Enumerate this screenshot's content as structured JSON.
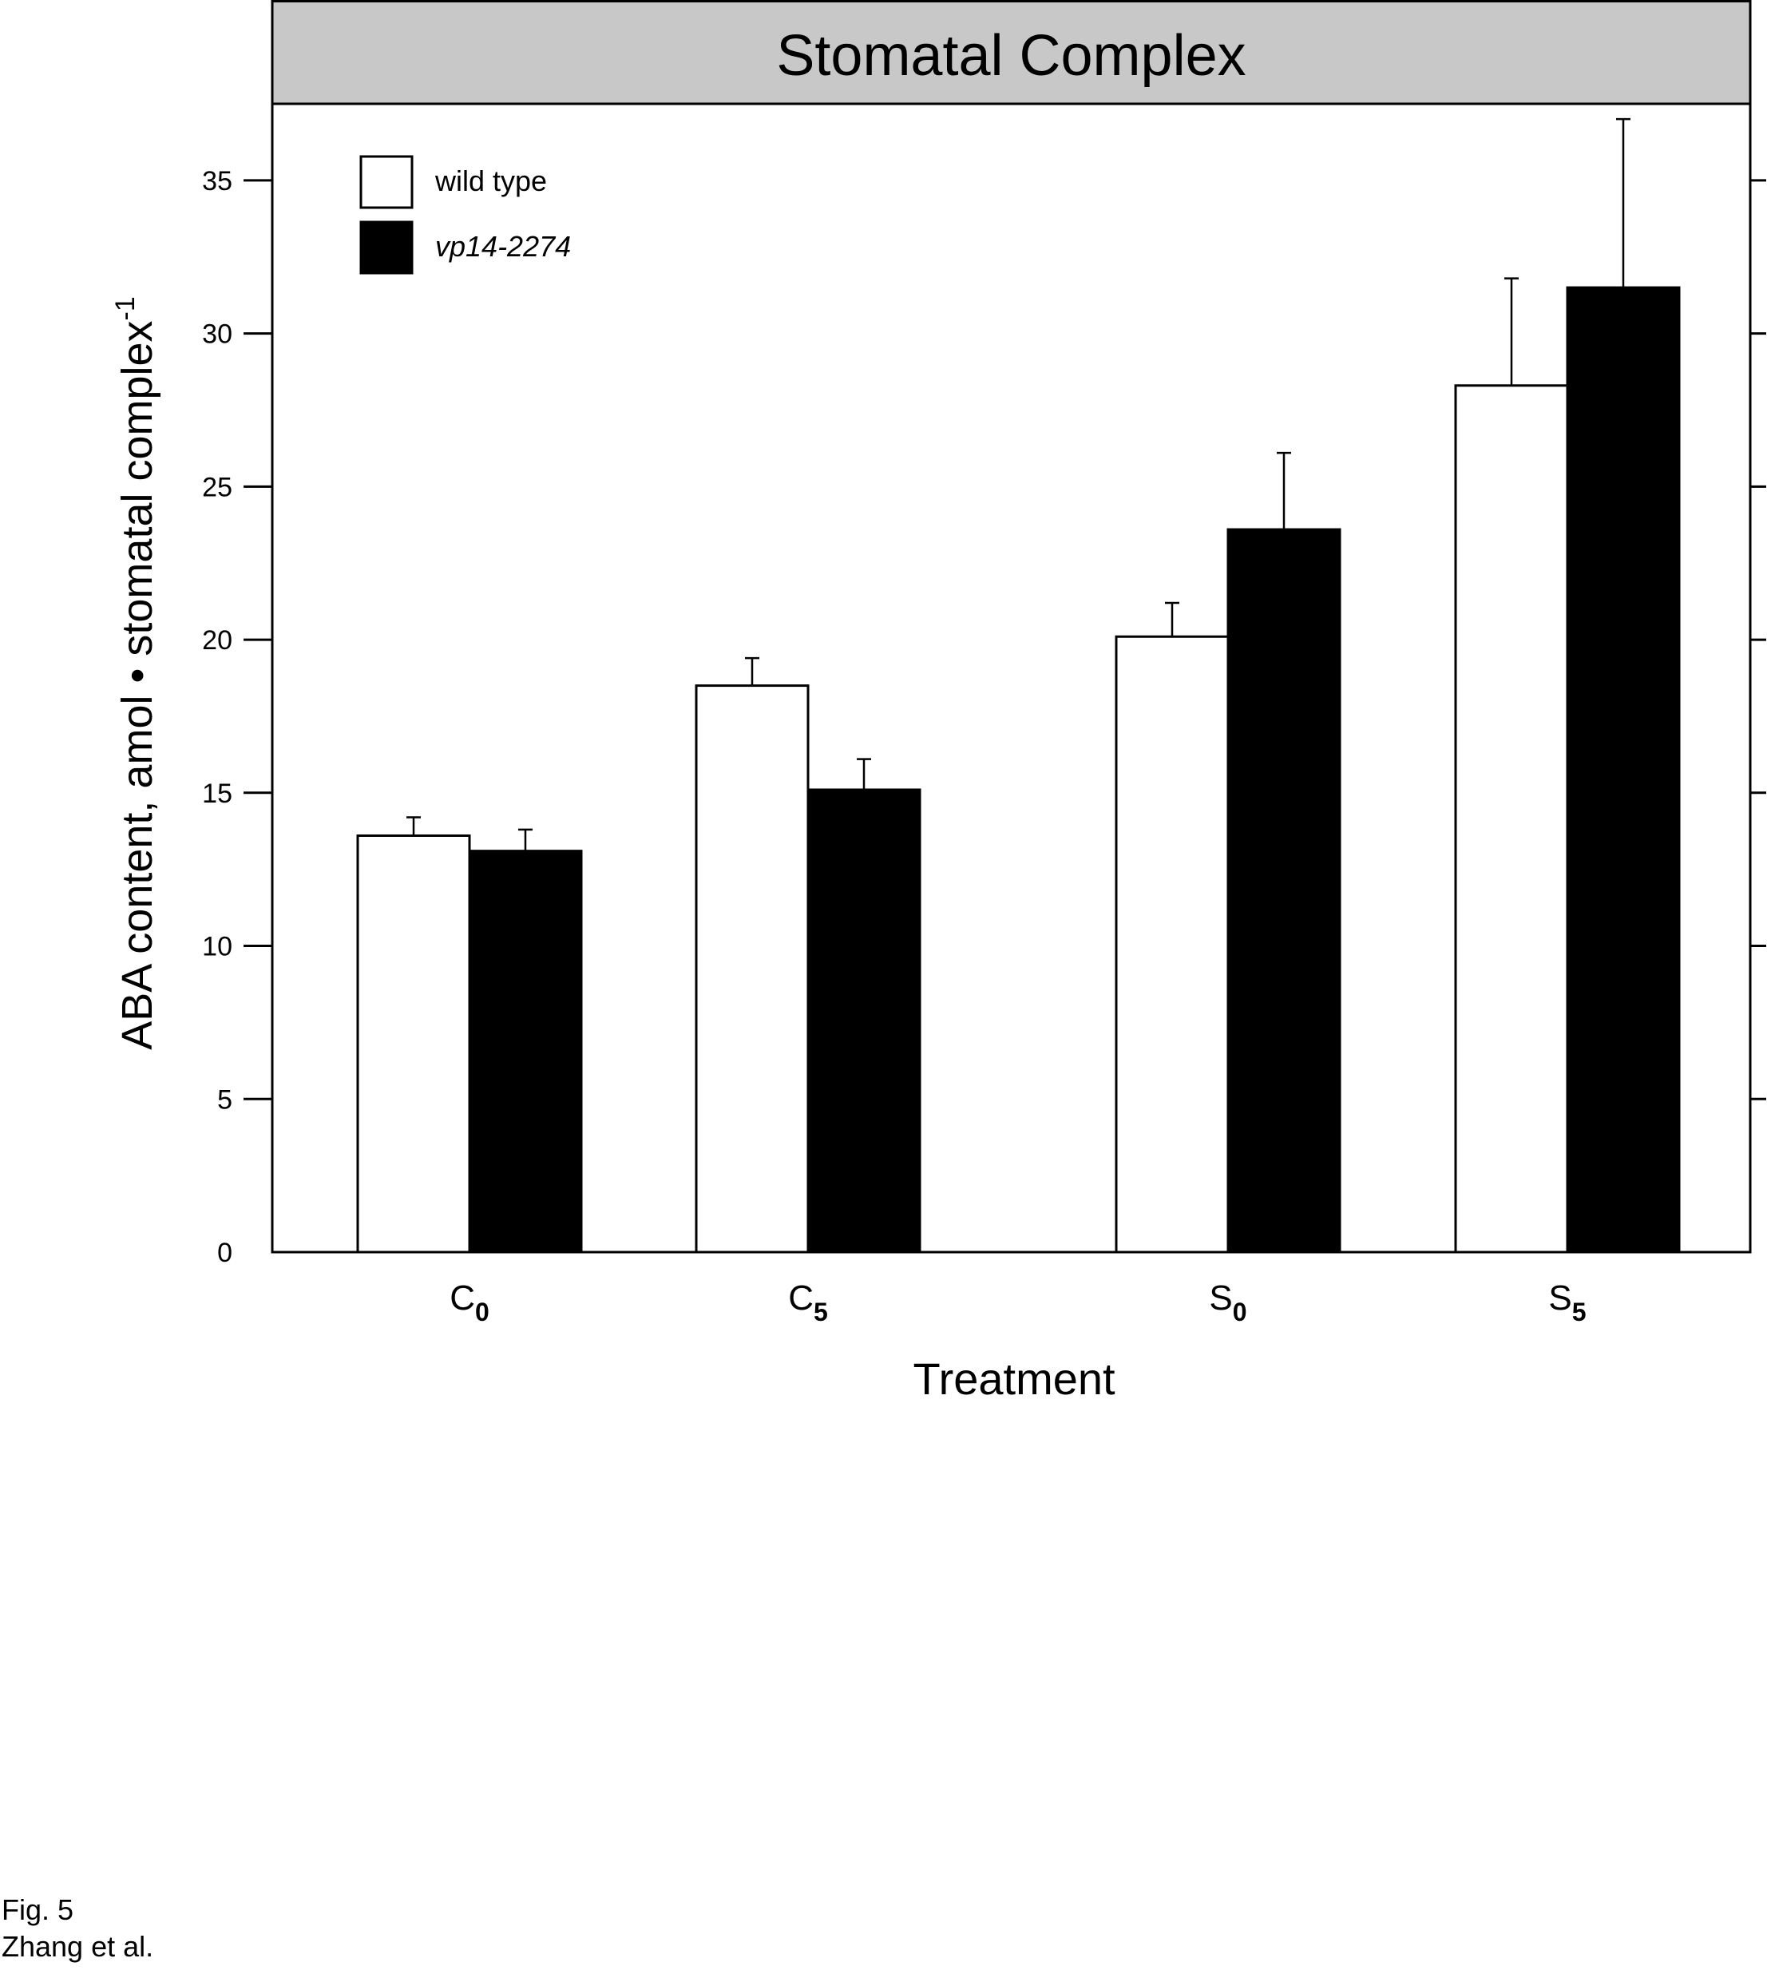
{
  "chart_data": {
    "type": "bar",
    "title": "Stomatal Complex",
    "xlabel": "Treatment",
    "ylabel": {
      "main": "ABA content, amol • stomatal complex",
      "superscript": "-1"
    },
    "ylim": [
      0,
      37.5
    ],
    "yticks": [
      "0",
      "5",
      "10",
      "15",
      "20",
      "25",
      "30",
      "35"
    ],
    "categories": [
      {
        "base": "C",
        "sub": "0"
      },
      {
        "base": "C",
        "sub": "5"
      },
      {
        "base": "S",
        "sub": "0"
      },
      {
        "base": "S",
        "sub": "5"
      }
    ],
    "series": [
      {
        "name": "wild type",
        "italic": false,
        "color": "#ffffff",
        "values": [
          13.6,
          18.5,
          20.1,
          28.3
        ],
        "errors": [
          0.6,
          0.9,
          1.1,
          3.5
        ]
      },
      {
        "name": "vp14-2274",
        "italic": true,
        "color": "#000000",
        "values": [
          13.1,
          15.1,
          23.6,
          31.5
        ],
        "errors": [
          0.7,
          1.0,
          2.5,
          5.5
        ]
      }
    ],
    "legend_position": "top-left",
    "title_band_color": "#c8c8c8",
    "grid": false
  },
  "caption": {
    "line1": "Fig. 5",
    "line2": "Zhang et al."
  }
}
